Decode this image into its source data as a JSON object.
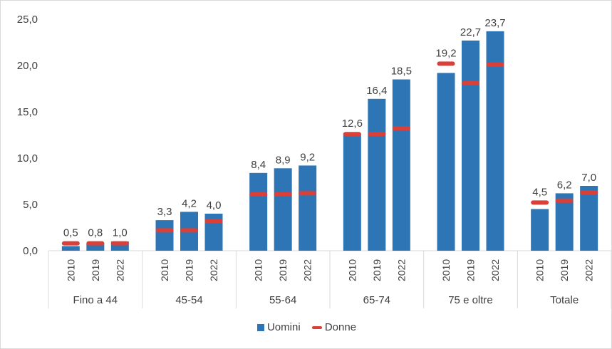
{
  "chart_data": {
    "type": "bar",
    "title": "",
    "xlabel": "",
    "ylabel": "",
    "ylim": [
      0,
      25
    ],
    "yticks": [
      "0,0",
      "5,0",
      "10,0",
      "15,0",
      "20,0",
      "25,0"
    ],
    "ytick_values": [
      0,
      5,
      10,
      15,
      20,
      25
    ],
    "grid": false,
    "legend_position": "bottom",
    "groups": [
      {
        "label": "Fino a 44",
        "years": [
          "2010",
          "2019",
          "2022"
        ],
        "uomini": [
          0.5,
          0.8,
          1.0
        ],
        "uomini_labels": [
          "0,5",
          "0,8",
          "1,0"
        ],
        "donne": [
          0.8,
          0.8,
          0.8
        ]
      },
      {
        "label": "45-54",
        "years": [
          "2010",
          "2019",
          "2022"
        ],
        "uomini": [
          3.3,
          4.2,
          4.0
        ],
        "uomini_labels": [
          "3,3",
          "4,2",
          "4,0"
        ],
        "donne": [
          2.2,
          2.2,
          3.2
        ]
      },
      {
        "label": "55-64",
        "years": [
          "2010",
          "2019",
          "2022"
        ],
        "uomini": [
          8.4,
          8.9,
          9.2
        ],
        "uomini_labels": [
          "8,4",
          "8,9",
          "9,2"
        ],
        "donne": [
          6.1,
          6.1,
          6.2
        ]
      },
      {
        "label": "65-74",
        "years": [
          "2010",
          "2019",
          "2022"
        ],
        "uomini": [
          12.6,
          16.4,
          18.5
        ],
        "uomini_labels": [
          "12,6",
          "16,4",
          "18,5"
        ],
        "donne": [
          12.6,
          12.6,
          13.2
        ]
      },
      {
        "label": "75 e oltre",
        "years": [
          "2010",
          "2019",
          "2022"
        ],
        "uomini": [
          19.2,
          22.7,
          23.7
        ],
        "uomini_labels": [
          "19,2",
          "22,7",
          "23,7"
        ],
        "donne": [
          20.2,
          18.1,
          20.1
        ]
      },
      {
        "label": "Totale",
        "years": [
          "2010",
          "2019",
          "2022"
        ],
        "uomini": [
          4.5,
          6.2,
          7.0
        ],
        "uomini_labels": [
          "4,5",
          "6,2",
          "7,0"
        ],
        "donne": [
          5.2,
          5.4,
          6.3
        ]
      }
    ],
    "series": [
      {
        "name": "Uomini",
        "kind": "bar",
        "color": "#2e75b6"
      },
      {
        "name": "Donne",
        "kind": "marker",
        "color": "#d9403a"
      }
    ]
  },
  "legend": {
    "uomini_label": "Uomini",
    "donne_label": "Donne"
  }
}
